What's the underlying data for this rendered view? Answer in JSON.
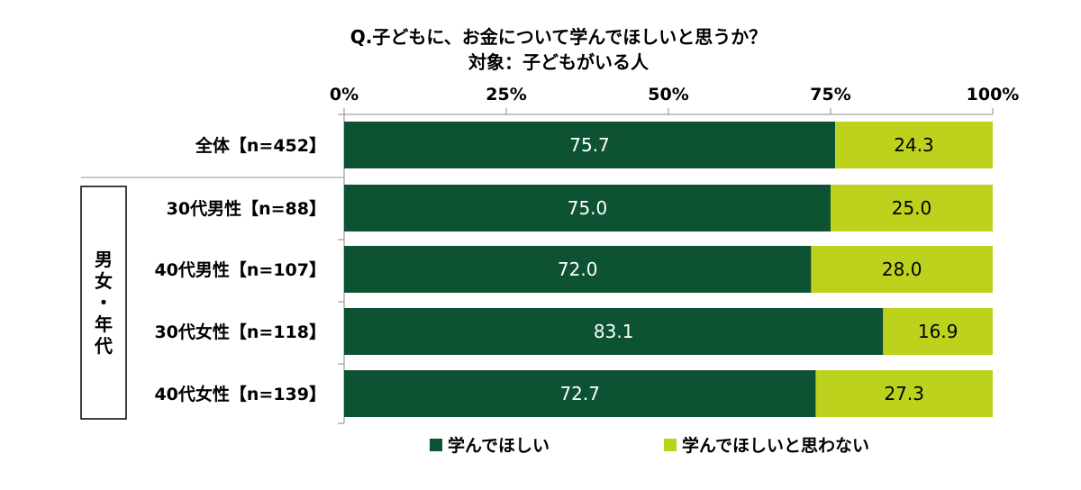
{
  "chart_data": {
    "type": "bar",
    "orientation": "horizontal",
    "stacked": true,
    "title": "Q.子どもに、お金について学んでほしいと思うか？",
    "subtitle": "対象：子どもがいる人",
    "xticks": [
      "0%",
      "25%",
      "50%",
      "75%",
      "100%"
    ],
    "xlim": [
      0,
      100
    ],
    "categories": [
      "全体【n=452】",
      "30代男性【n=88】",
      "40代男性【n=107】",
      "30代女性【n=118】",
      "40代女性【n=139】"
    ],
    "group_label": "男女・年代",
    "series": [
      {
        "name": "学んでほしい",
        "color": "#0d5233",
        "values": [
          75.7,
          75.0,
          72.0,
          83.1,
          72.7
        ],
        "labels": [
          "75.7",
          "75.0",
          "72.0",
          "83.1",
          "72.7"
        ]
      },
      {
        "name": "学んでほしいと思わない",
        "color": "#bdd21c",
        "values": [
          24.3,
          25.0,
          28.0,
          16.9,
          27.3
        ],
        "labels": [
          "24.3",
          "25.0",
          "28.0",
          "16.9",
          "27.3"
        ]
      }
    ],
    "legend": "bottom",
    "grid": false
  }
}
